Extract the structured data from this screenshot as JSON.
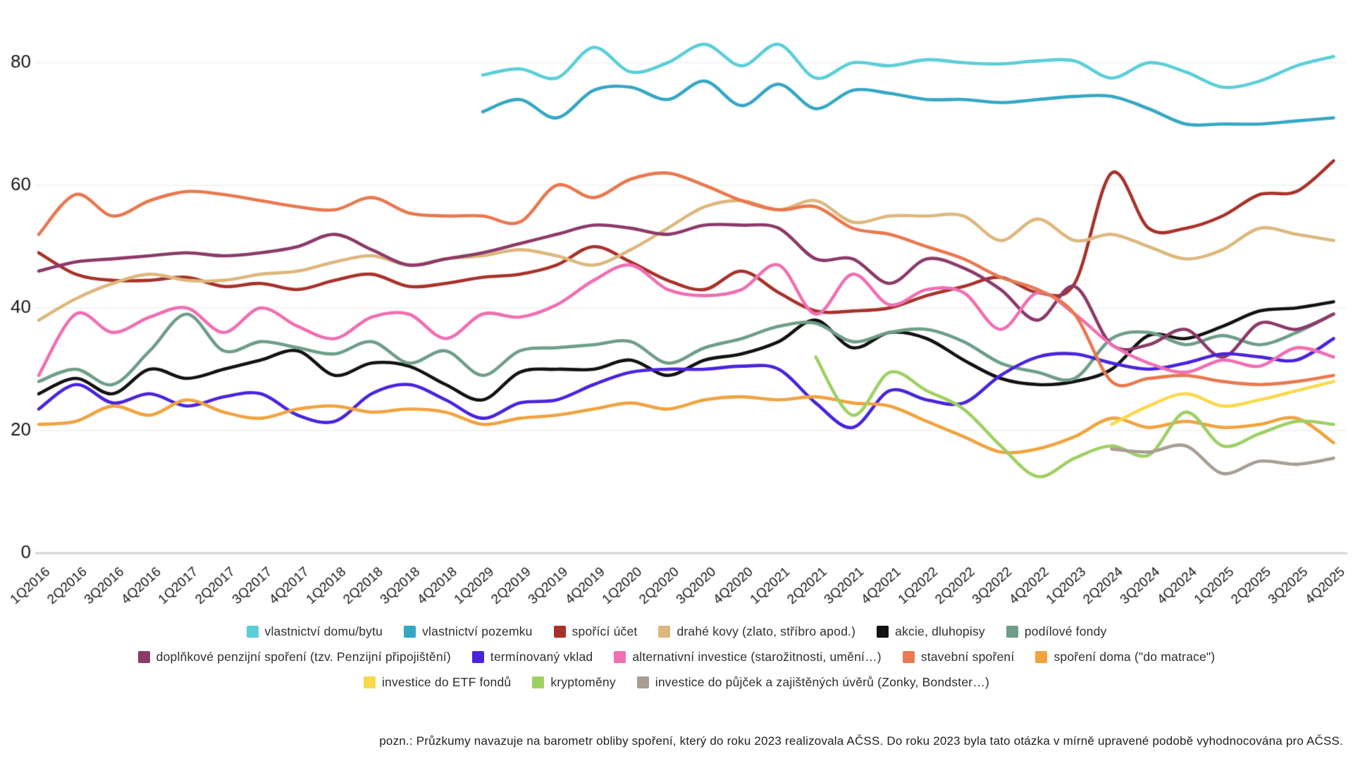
{
  "note": "pozn.: Průzkumy navazuje na barometr obliby spoření, který do roku 2023 realizovala AČSS. Do roku 2023 byla tato otázka v mírně upravené podobě vyhodnocována pro AČSS.",
  "chart_data": {
    "type": "line",
    "title": "",
    "xlabel": "",
    "ylabel": "",
    "grid": true,
    "legend_position": "bottom",
    "ylim": [
      0,
      86
    ],
    "y_ticks": [
      0,
      20,
      40,
      60,
      80
    ],
    "categories": [
      "1Q2016",
      "2Q2016",
      "3Q2016",
      "4Q2016",
      "1Q2017",
      "2Q2017",
      "3Q2017",
      "4Q2017",
      "1Q2018",
      "2Q2018",
      "3Q2018",
      "4Q2018",
      "1Q2029",
      "2Q2019",
      "3Q2019",
      "4Q2019",
      "1Q2020",
      "2Q2020",
      "3Q2020",
      "4Q2020",
      "1Q2021",
      "2Q2021",
      "3Q2021",
      "4Q2021",
      "1Q2022",
      "2Q2022",
      "3Q2022",
      "4Q2022",
      "1Q2023",
      "2Q2024",
      "3Q2024",
      "4Q2024",
      "1Q2025",
      "2Q2025",
      "3Q2025",
      "4Q2025"
    ],
    "legend_rows": [
      [
        0,
        1,
        2,
        3,
        4,
        5
      ],
      [
        6,
        7,
        8,
        9,
        10
      ],
      [
        11,
        12,
        13
      ]
    ],
    "series": [
      {
        "name": "vlastnictví domu/bytu",
        "color": "#5BCFD8",
        "values": [
          null,
          null,
          null,
          null,
          null,
          null,
          null,
          null,
          null,
          null,
          null,
          null,
          78,
          79,
          77.5,
          82.5,
          78.5,
          80,
          83,
          79.5,
          83,
          77.5,
          80,
          79.5,
          80.5,
          80,
          79.8,
          80.3,
          80.3,
          77.5,
          80,
          78.5,
          76,
          77,
          79.5,
          81
        ]
      },
      {
        "name": "vlastnictví pozemku",
        "color": "#36A7C3",
        "values": [
          null,
          null,
          null,
          null,
          null,
          null,
          null,
          null,
          null,
          null,
          null,
          null,
          72,
          74,
          71,
          75.5,
          76,
          74,
          77,
          73,
          76.5,
          72.5,
          75.5,
          75,
          74,
          74,
          73.5,
          74,
          74.5,
          74.5,
          72.5,
          70,
          70,
          70,
          70.5,
          71
        ]
      },
      {
        "name": "spořící účet",
        "color": "#A8322A",
        "values": [
          49,
          45.5,
          44.5,
          44.5,
          45,
          43.5,
          44,
          43,
          44.5,
          45.5,
          43.5,
          44,
          45,
          45.5,
          47,
          50,
          47.5,
          44.5,
          43,
          46,
          42.5,
          39.5,
          39.5,
          40,
          42,
          43.5,
          45,
          42.5,
          44,
          62,
          53,
          53,
          55,
          58.5,
          59,
          64
        ]
      },
      {
        "name": "drahé kovy (zlato, stříbro apod.)",
        "color": "#DDB87E",
        "values": [
          38,
          41.5,
          44,
          45.5,
          44.5,
          44.5,
          45.5,
          46,
          47.5,
          48.5,
          47,
          48,
          48.5,
          49.5,
          48.5,
          47,
          49.5,
          53,
          56.5,
          57.5,
          56,
          57.5,
          54,
          55,
          55,
          55,
          51,
          54.5,
          51,
          52,
          50,
          48,
          49.5,
          53,
          52,
          51
        ]
      },
      {
        "name": "akcie, dluhopisy",
        "color": "#121212",
        "values": [
          26,
          28.5,
          26,
          30,
          28.5,
          30,
          31.5,
          33,
          29,
          31,
          30.5,
          27.5,
          25,
          29.5,
          30,
          30,
          31.5,
          29,
          31.5,
          32.5,
          34.5,
          38,
          33.5,
          36,
          35,
          31.5,
          28.5,
          27.5,
          28,
          30,
          35.5,
          35,
          37,
          39.5,
          40,
          41
        ]
      },
      {
        "name": "podílové fondy",
        "color": "#6E9E88",
        "values": [
          28,
          30,
          27.5,
          33,
          39,
          33,
          34.5,
          33.5,
          32.5,
          34.5,
          31,
          33,
          29,
          33,
          33.5,
          34,
          34.5,
          31,
          33.5,
          35,
          37,
          37.5,
          34.5,
          36,
          36.5,
          34.5,
          31,
          29.5,
          28.5,
          35,
          36,
          34,
          35.5,
          34,
          36,
          39
        ]
      },
      {
        "name": "doplňkové penzijní spoření (tzv. Penzijní připojištění)",
        "color": "#8B3A69",
        "values": [
          46,
          47.5,
          48,
          48.5,
          49,
          48.5,
          49,
          50,
          52,
          49.5,
          47,
          48,
          49,
          50.5,
          52,
          53.5,
          53,
          52,
          53.5,
          53.5,
          53,
          48,
          48,
          44,
          48,
          46.5,
          43,
          38,
          43.5,
          34,
          34,
          36.5,
          32,
          37.5,
          36.5,
          39
        ]
      },
      {
        "name": "termínovaný vklad",
        "color": "#4A24DB",
        "values": [
          23.5,
          27.5,
          24.5,
          26,
          24,
          25.5,
          26,
          22.5,
          21.5,
          26,
          27.5,
          25,
          22,
          24.5,
          25,
          27.5,
          29.5,
          30,
          30,
          30.5,
          30,
          24.5,
          20.5,
          26.5,
          25,
          24.5,
          29,
          32,
          32.5,
          31,
          30,
          31,
          32.5,
          32,
          31.5,
          35
        ]
      },
      {
        "name": "alternativní investice (starožitnosti, umění…)",
        "color": "#F06FB2",
        "values": [
          29,
          39,
          36,
          38.5,
          40,
          36,
          40,
          37,
          35,
          38.5,
          39,
          35,
          39,
          38.5,
          40.5,
          44.5,
          47,
          43,
          42,
          43,
          47,
          39,
          45.5,
          40.5,
          43,
          42.5,
          36.5,
          42.5,
          39,
          34,
          31,
          29.5,
          31.5,
          30.5,
          33.5,
          32
        ]
      },
      {
        "name": "stavební spoření",
        "color": "#E87950",
        "values": [
          52,
          58.5,
          55,
          57.5,
          59,
          58.5,
          57.5,
          56.5,
          56,
          58,
          55.5,
          55,
          55,
          54,
          60,
          58,
          61,
          62,
          60,
          57.5,
          56,
          56.5,
          53,
          52,
          50,
          48,
          45,
          43,
          39,
          28,
          28.5,
          29,
          28,
          27.5,
          28,
          29
        ]
      },
      {
        "name": "spoření doma (\"do matrace\")",
        "color": "#F1A33F",
        "values": [
          21,
          21.5,
          24,
          22.5,
          25,
          23,
          22,
          23.5,
          24,
          23,
          23.5,
          23,
          21,
          22,
          22.5,
          23.5,
          24.5,
          23.5,
          25,
          25.5,
          25,
          25.5,
          24.5,
          24,
          21.5,
          19,
          16.5,
          17,
          19,
          22,
          20.5,
          21.5,
          20.5,
          21,
          22,
          18
        ]
      },
      {
        "name": "investice do ETF fondů",
        "color": "#F9D94C",
        "values": [
          null,
          null,
          null,
          null,
          null,
          null,
          null,
          null,
          null,
          null,
          null,
          null,
          null,
          null,
          null,
          null,
          null,
          null,
          null,
          null,
          null,
          null,
          null,
          null,
          null,
          null,
          null,
          null,
          null,
          21,
          24,
          26,
          24,
          25,
          26.5,
          28
        ]
      },
      {
        "name": "kryptoměny",
        "color": "#9ED063",
        "values": [
          null,
          null,
          null,
          null,
          null,
          null,
          null,
          null,
          null,
          null,
          null,
          null,
          null,
          null,
          null,
          null,
          null,
          null,
          null,
          null,
          null,
          32,
          22.5,
          29.5,
          26.5,
          23.5,
          17.5,
          12.5,
          15.5,
          17.5,
          16,
          23,
          17.5,
          19.5,
          21.5,
          21
        ]
      },
      {
        "name": "investice do půjček a zajištěných úvěrů (Zonky, Bondster…)",
        "color": "#A89E92",
        "values": [
          null,
          null,
          null,
          null,
          null,
          null,
          null,
          null,
          null,
          null,
          null,
          null,
          null,
          null,
          null,
          null,
          null,
          null,
          null,
          null,
          null,
          null,
          null,
          null,
          null,
          null,
          null,
          null,
          null,
          17,
          16.5,
          17.5,
          13,
          15,
          14.5,
          15.5
        ]
      }
    ]
  }
}
